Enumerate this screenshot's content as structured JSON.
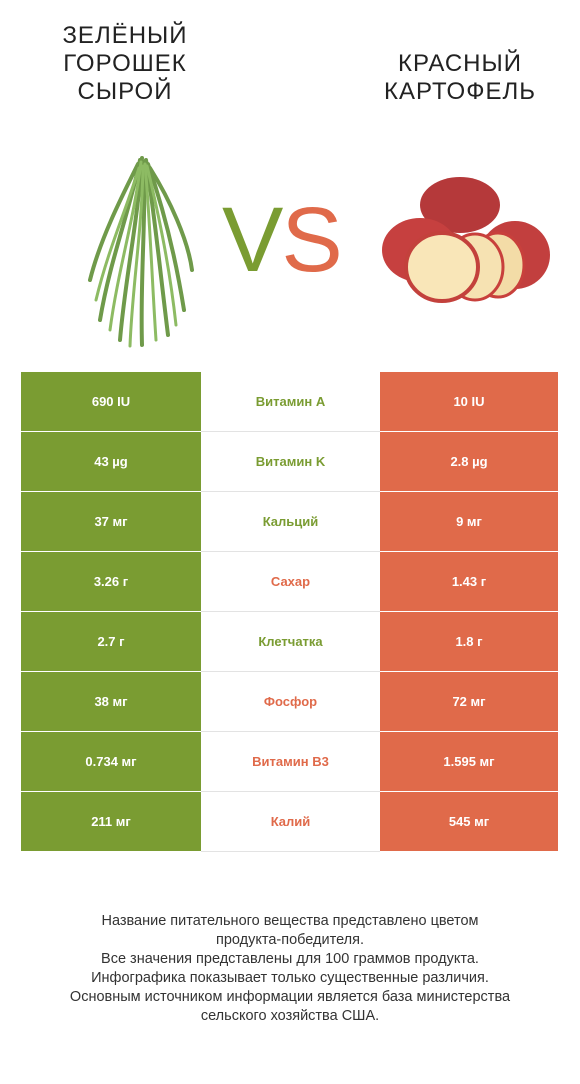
{
  "left_food": {
    "title": "ЗЕЛЁНЫЙ\nГОРОШЕК\nСЫРОЙ",
    "image": "green-beans-image",
    "color": "#7a9c32"
  },
  "right_food": {
    "title": "КРАСНЫЙ\nКАРТОФЕЛЬ",
    "image": "red-potato-image",
    "color": "#e06a4a"
  },
  "vs": {
    "v": "V",
    "s": "S"
  },
  "rows": [
    {
      "left": "690 IU",
      "nutrient": "Витамин A",
      "right": "10 IU",
      "winner": "left"
    },
    {
      "left": "43 µg",
      "nutrient": "Витамин K",
      "right": "2.8 µg",
      "winner": "left"
    },
    {
      "left": "37 мг",
      "nutrient": "Кальций",
      "right": "9 мг",
      "winner": "left"
    },
    {
      "left": "3.26 г",
      "nutrient": "Сахар",
      "right": "1.43 г",
      "winner": "right"
    },
    {
      "left": "2.7 г",
      "nutrient": "Клетчатка",
      "right": "1.8 г",
      "winner": "left"
    },
    {
      "left": "38 мг",
      "nutrient": "Фосфор",
      "right": "72 мг",
      "winner": "right"
    },
    {
      "left": "0.734 мг",
      "nutrient": "Витамин B3",
      "right": "1.595 мг",
      "winner": "right"
    },
    {
      "left": "211 мг",
      "nutrient": "Калий",
      "right": "545 мг",
      "winner": "right"
    }
  ],
  "footer": [
    "Название питательного вещества представлено цветом",
    "продукта-победителя.",
    "Все значения представлены для 100 граммов продукта.",
    "Инфографика показывает только существенные различия.",
    "Основным источником информации является база министерства",
    "сельского хозяйства США."
  ]
}
